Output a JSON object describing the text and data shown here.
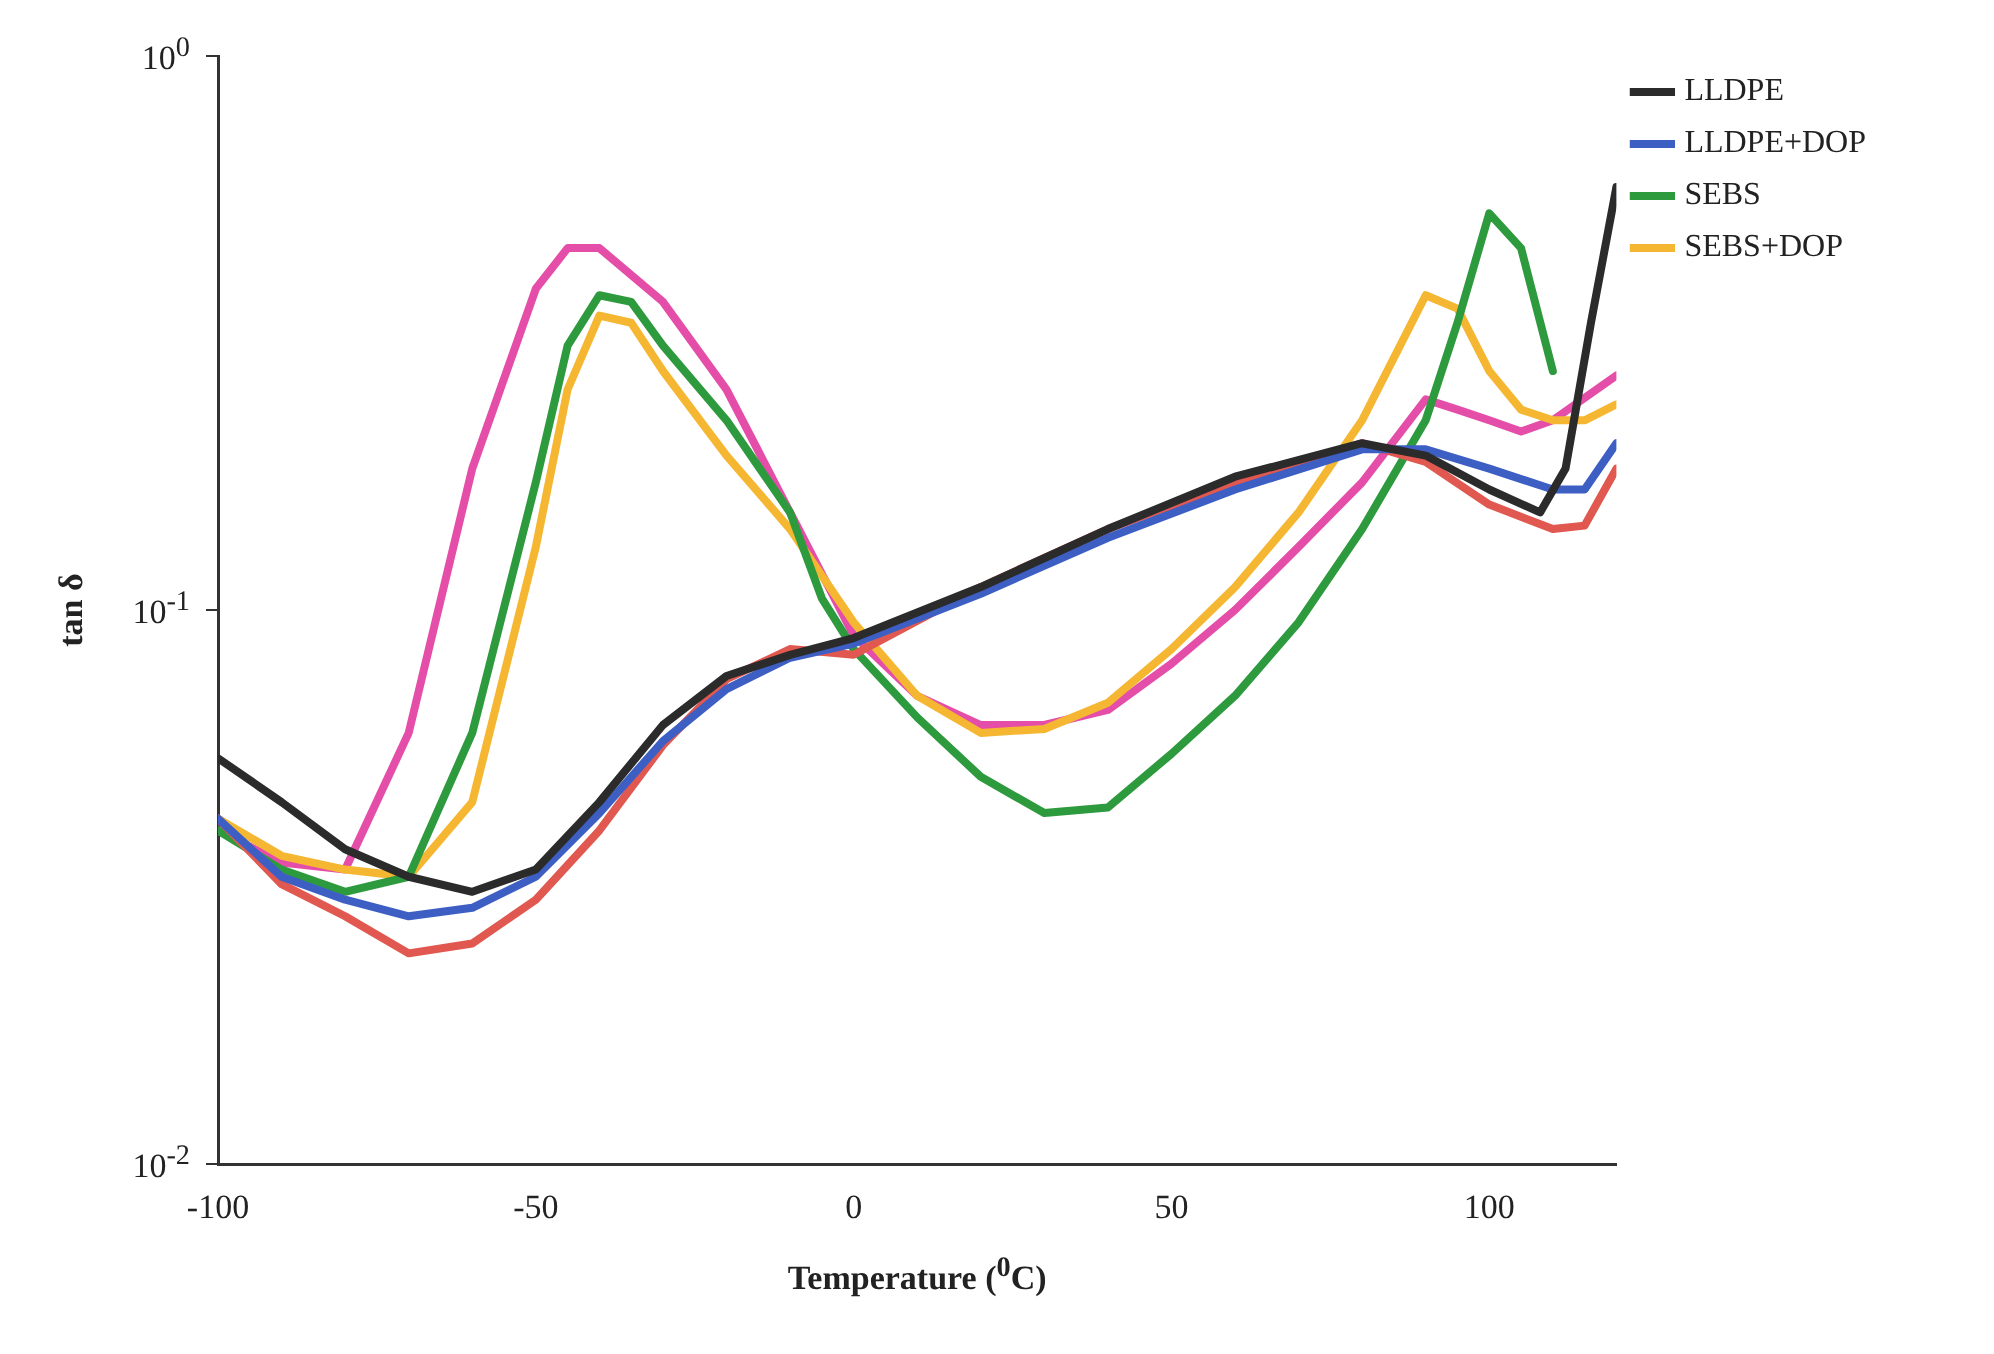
{
  "chart_data": {
    "type": "line",
    "xlabel": "Temperature ($^{0}$C)",
    "ylabel": "tan δ",
    "log": "y",
    "xlim": [
      -100,
      120
    ],
    "xticks": [
      -100,
      -50,
      0,
      50,
      100
    ],
    "ylim": [
      0.01,
      1
    ],
    "yticks": [
      {
        "value": 1,
        "label": "10$^{0}$"
      },
      {
        "value": 0.1,
        "label": "10$^{-1}$"
      },
      {
        "value": 0.01,
        "label": "10$^{-2}$"
      }
    ],
    "grid": false,
    "legend": "right",
    "marker": "none",
    "line_style": "solid",
    "series": [
      {
        "name": "LLDPE",
        "color": "#2b2b2b",
        "x": [
          -100,
          -90,
          -80,
          -70,
          -60,
          -50,
          -40,
          -30,
          -20,
          -10,
          0,
          20,
          40,
          60,
          80,
          90,
          100,
          108,
          112,
          116,
          120
        ],
        "values": [
          0.054,
          0.045,
          0.037,
          0.033,
          0.031,
          0.034,
          0.045,
          0.062,
          0.076,
          0.083,
          0.089,
          0.11,
          0.14,
          0.174,
          0.2,
          0.19,
          0.165,
          0.15,
          0.18,
          0.33,
          0.58
        ]
      },
      {
        "name": "LLDPE+DOP",
        "color": "#3d5fc4",
        "x": [
          -100,
          -90,
          -80,
          -70,
          -60,
          -50,
          -40,
          -30,
          -20,
          -10,
          0,
          20,
          40,
          60,
          80,
          90,
          100,
          110,
          115,
          120
        ],
        "values": [
          0.042,
          0.033,
          0.03,
          0.028,
          0.029,
          0.033,
          0.043,
          0.058,
          0.072,
          0.082,
          0.087,
          0.107,
          0.135,
          0.165,
          0.195,
          0.195,
          0.18,
          0.165,
          0.165,
          0.2
        ]
      },
      {
        "color": "#e0584f",
        "x": [
          -100,
          -90,
          -80,
          -70,
          -60,
          -50,
          -40,
          -30,
          -20,
          -10,
          0,
          20,
          40,
          60,
          80,
          90,
          100,
          110,
          115,
          120
        ],
        "values": [
          0.042,
          0.032,
          0.028,
          0.024,
          0.025,
          0.03,
          0.04,
          0.057,
          0.075,
          0.085,
          0.083,
          0.11,
          0.14,
          0.17,
          0.2,
          0.185,
          0.155,
          0.14,
          0.142,
          0.18
        ]
      },
      {
        "name": "SEBS",
        "color": "#2e9a3e",
        "x": [
          -100,
          -90,
          -80,
          -70,
          -60,
          -50,
          -45,
          -40,
          -35,
          -30,
          -20,
          -10,
          -5,
          0,
          10,
          20,
          30,
          40,
          50,
          60,
          70,
          80,
          90,
          95,
          100,
          105,
          110
        ],
        "values": [
          0.04,
          0.034,
          0.031,
          0.033,
          0.06,
          0.17,
          0.3,
          0.37,
          0.36,
          0.3,
          0.22,
          0.15,
          0.105,
          0.085,
          0.064,
          0.05,
          0.043,
          0.044,
          0.055,
          0.07,
          0.095,
          0.14,
          0.22,
          0.33,
          0.52,
          0.45,
          0.27
        ]
      },
      {
        "name": "SEBS+DOP",
        "color": "#f5b731",
        "x": [
          -100,
          -90,
          -80,
          -70,
          -60,
          -50,
          -45,
          -40,
          -35,
          -30,
          -20,
          -10,
          0,
          10,
          20,
          30,
          40,
          50,
          60,
          70,
          80,
          90,
          95,
          100,
          105,
          110,
          115,
          120
        ],
        "values": [
          0.042,
          0.036,
          0.034,
          0.033,
          0.045,
          0.13,
          0.25,
          0.34,
          0.33,
          0.27,
          0.19,
          0.14,
          0.095,
          0.07,
          0.06,
          0.061,
          0.068,
          0.085,
          0.11,
          0.15,
          0.22,
          0.37,
          0.35,
          0.27,
          0.23,
          0.22,
          0.22,
          0.235
        ]
      },
      {
        "color": "#e44ea8",
        "x": [
          -100,
          -90,
          -80,
          -70,
          -60,
          -50,
          -45,
          -40,
          -30,
          -20,
          -10,
          0,
          10,
          20,
          30,
          40,
          50,
          60,
          70,
          80,
          90,
          95,
          100,
          105,
          110,
          120
        ],
        "values": [
          0.04,
          0.035,
          0.034,
          0.06,
          0.18,
          0.38,
          0.45,
          0.45,
          0.36,
          0.25,
          0.15,
          0.09,
          0.07,
          0.062,
          0.062,
          0.066,
          0.08,
          0.1,
          0.13,
          0.17,
          0.24,
          0.23,
          0.22,
          0.21,
          0.22,
          0.265
        ]
      }
    ]
  }
}
